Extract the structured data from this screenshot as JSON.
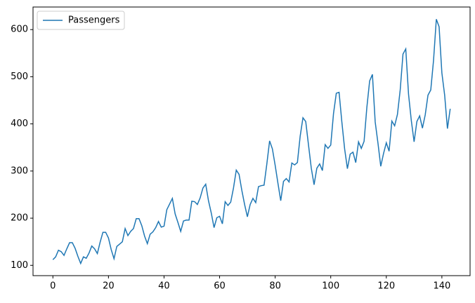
{
  "chart_data": {
    "type": "line",
    "x": [
      0,
      1,
      2,
      3,
      4,
      5,
      6,
      7,
      8,
      9,
      10,
      11,
      12,
      13,
      14,
      15,
      16,
      17,
      18,
      19,
      20,
      21,
      22,
      23,
      24,
      25,
      26,
      27,
      28,
      29,
      30,
      31,
      32,
      33,
      34,
      35,
      36,
      37,
      38,
      39,
      40,
      41,
      42,
      43,
      44,
      45,
      46,
      47,
      48,
      49,
      50,
      51,
      52,
      53,
      54,
      55,
      56,
      57,
      58,
      59,
      60,
      61,
      62,
      63,
      64,
      65,
      66,
      67,
      68,
      69,
      70,
      71,
      72,
      73,
      74,
      75,
      76,
      77,
      78,
      79,
      80,
      81,
      82,
      83,
      84,
      85,
      86,
      87,
      88,
      89,
      90,
      91,
      92,
      93,
      94,
      95,
      96,
      97,
      98,
      99,
      100,
      101,
      102,
      103,
      104,
      105,
      106,
      107,
      108,
      109,
      110,
      111,
      112,
      113,
      114,
      115,
      116,
      117,
      118,
      119,
      120,
      121,
      122,
      123,
      124,
      125,
      126,
      127,
      128,
      129,
      130,
      131,
      132,
      133,
      134,
      135,
      136,
      137,
      138,
      139,
      140,
      141,
      142,
      143
    ],
    "series": [
      {
        "name": "Passengers",
        "color": "#1f77b4",
        "values": [
          112,
          118,
          132,
          129,
          121,
          135,
          148,
          148,
          136,
          119,
          104,
          118,
          115,
          126,
          141,
          135,
          125,
          149,
          170,
          170,
          158,
          133,
          114,
          140,
          145,
          150,
          178,
          163,
          172,
          178,
          199,
          199,
          184,
          162,
          146,
          166,
          171,
          180,
          193,
          181,
          183,
          218,
          230,
          242,
          209,
          191,
          172,
          194,
          196,
          196,
          236,
          235,
          229,
          243,
          264,
          272,
          237,
          211,
          180,
          201,
          204,
          188,
          235,
          227,
          234,
          264,
          302,
          293,
          259,
          229,
          203,
          229,
          242,
          233,
          267,
          269,
          270,
          315,
          364,
          347,
          312,
          274,
          237,
          278,
          284,
          277,
          317,
          313,
          318,
          374,
          413,
          405,
          355,
          306,
          271,
          306,
          315,
          301,
          356,
          348,
          355,
          422,
          465,
          467,
          404,
          347,
          305,
          336,
          340,
          318,
          362,
          348,
          363,
          435,
          491,
          505,
          404,
          359,
          310,
          337,
          360,
          342,
          406,
          396,
          420,
          472,
          548,
          559,
          463,
          407,
          362,
          405,
          417,
          391,
          419,
          461,
          472,
          535,
          622,
          606,
          508,
          461,
          390,
          432
        ]
      }
    ],
    "xlim": [
      -7.15,
      150.15
    ],
    "ylim": [
      78.1,
      647.9
    ],
    "xticks": [
      0,
      20,
      40,
      60,
      80,
      100,
      120,
      140
    ],
    "yticks": [
      100,
      200,
      300,
      400,
      500,
      600
    ],
    "legend": "upper left"
  }
}
